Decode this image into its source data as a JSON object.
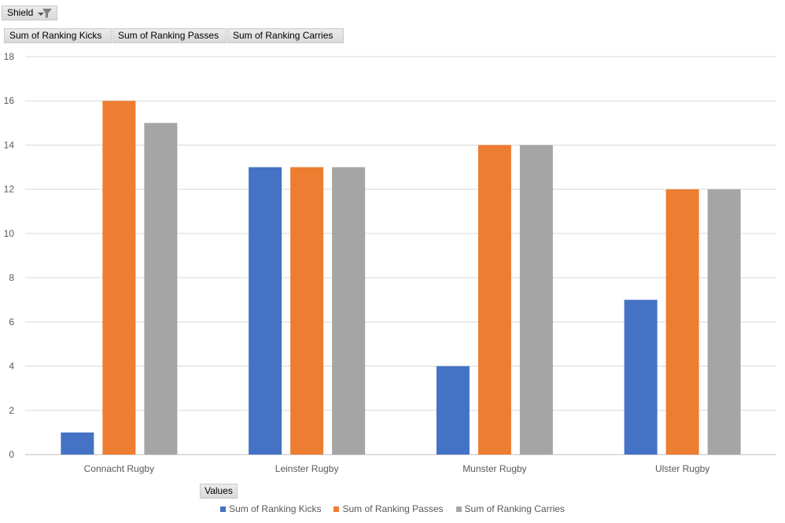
{
  "filter_button": {
    "label": "Shield",
    "icon": "filter-icon"
  },
  "value_buttons": [
    {
      "label": "Sum of Ranking Kicks"
    },
    {
      "label": "Sum of Ranking Passes"
    },
    {
      "label": "Sum of Ranking Carries"
    }
  ],
  "values_button": {
    "label": "Values"
  },
  "chart_data": {
    "type": "bar",
    "title": "",
    "xlabel": "",
    "ylabel": "",
    "categories": [
      "Connacht Rugby",
      "Leinster Rugby",
      "Munster Rugby",
      "Ulster Rugby"
    ],
    "series": [
      {
        "name": "Sum of Ranking Kicks",
        "color": "#4472c4",
        "values": [
          1,
          13,
          4,
          7
        ]
      },
      {
        "name": "Sum of Ranking Passes",
        "color": "#ed7d31",
        "values": [
          16,
          13,
          14,
          12
        ]
      },
      {
        "name": "Sum of Ranking Carries",
        "color": "#a5a5a5",
        "values": [
          15,
          13,
          14,
          12
        ]
      }
    ],
    "ylim": [
      0,
      18
    ],
    "yticks": [
      0,
      2,
      4,
      6,
      8,
      10,
      12,
      14,
      16,
      18
    ],
    "grid": true,
    "legend_position": "bottom"
  }
}
